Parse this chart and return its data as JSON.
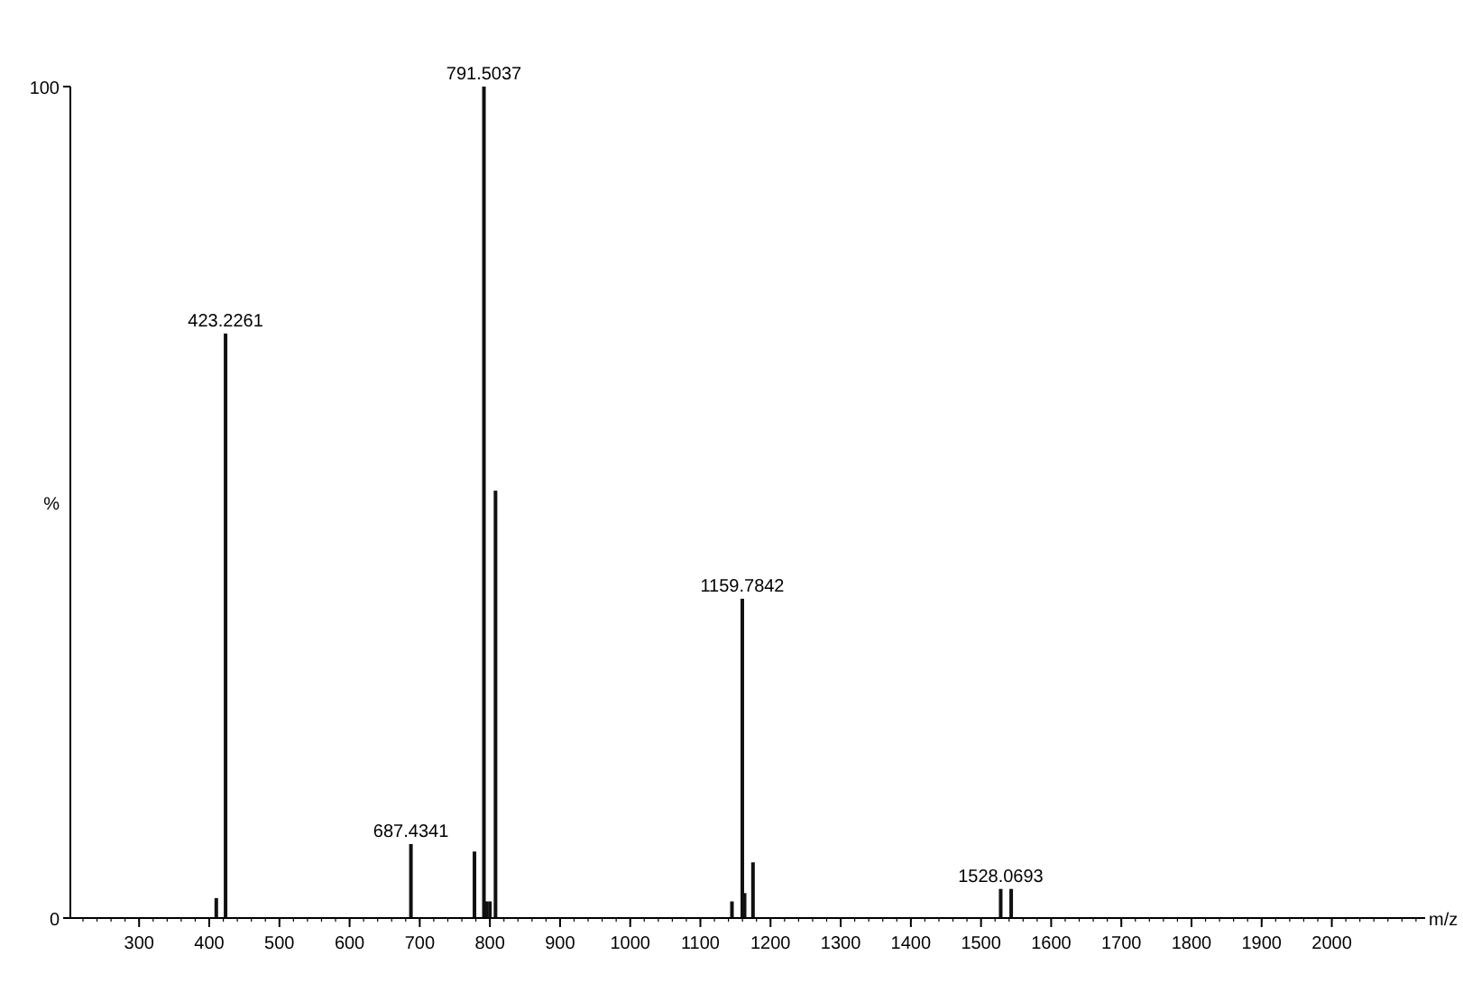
{
  "chart_data": {
    "type": "bar",
    "xlabel": "m/z",
    "ylabel": "%",
    "x": [
      410,
      423.2261,
      687.4341,
      778,
      791.5037,
      795,
      800,
      808,
      1145,
      1159.7842,
      1163,
      1175,
      1528.0693,
      1543
    ],
    "values": [
      2.4,
      70.3,
      8.9,
      8,
      100,
      2,
      2,
      51.4,
      2,
      38.4,
      3,
      6.7,
      3.5,
      3.5
    ],
    "color": "#111111",
    "xlim": [
      202,
      2133
    ],
    "xticks": [
      300,
      400,
      500,
      600,
      700,
      800,
      900,
      1000,
      1100,
      1200,
      1300,
      1400,
      1500,
      1600,
      1700,
      1800,
      1900,
      2000
    ],
    "ylim": [
      0,
      100
    ],
    "yticks": [
      0,
      100
    ],
    "grid": false,
    "annotations": [
      {
        "text": "423.2261",
        "x": 423.2261,
        "y": 70.3
      },
      {
        "text": "687.4341",
        "x": 687.4341,
        "y": 8.9
      },
      {
        "text": "791.5037",
        "x": 791.5037,
        "y": 100
      },
      {
        "text": "1159.7842",
        "x": 1159.7842,
        "y": 38.4
      },
      {
        "text": "1528.0693",
        "x": 1528.0693,
        "y": 3.5
      }
    ]
  }
}
